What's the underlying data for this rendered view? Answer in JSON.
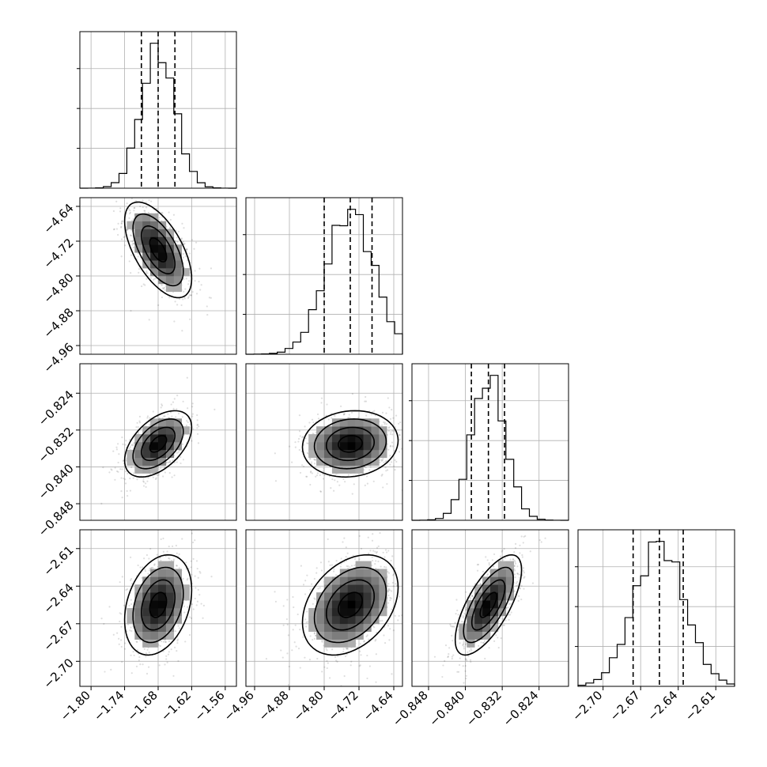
{
  "chart_data": {
    "type": "corner",
    "parameters": [
      {
        "index": 0,
        "median": -1.68,
        "q16": -1.71,
        "q84": -1.65,
        "std": 0.03,
        "range": [
          -1.82,
          -1.54
        ],
        "ticks": [
          -1.8,
          -1.74,
          -1.68,
          -1.62,
          -1.56
        ],
        "tick_labels": [
          "−1.80",
          "−1.74",
          "−1.68",
          "−1.62",
          "−1.56"
        ]
      },
      {
        "index": 1,
        "median": -4.74,
        "q16": -4.8,
        "q84": -4.69,
        "std": 0.055,
        "range": [
          -4.98,
          -4.62
        ],
        "ticks": [
          -4.96,
          -4.88,
          -4.8,
          -4.72,
          -4.64
        ],
        "tick_labels": [
          "−4.96",
          "−4.88",
          "−4.80",
          "−4.72",
          "−4.64"
        ]
      },
      {
        "index": 2,
        "median": -0.835,
        "q16": -0.8387,
        "q84": -0.8315,
        "std": 0.0036,
        "range": [
          -0.8516,
          -0.8176
        ],
        "ticks": [
          -0.848,
          -0.84,
          -0.832,
          -0.824
        ],
        "tick_labels": [
          "−0.848",
          "−0.840",
          "−0.832",
          "−0.824"
        ]
      },
      {
        "index": 3,
        "median": -2.655,
        "q16": -2.676,
        "q84": -2.636,
        "std": 0.02,
        "range": [
          -2.72,
          -2.595
        ],
        "ticks": [
          -2.7,
          -2.67,
          -2.64,
          -2.61
        ],
        "tick_labels": [
          "−2.70",
          "−2.67",
          "−2.64",
          "−2.61"
        ]
      }
    ],
    "correlations": {
      "1_0": -0.6,
      "2_0": 0.5,
      "2_1": 0.1,
      "3_0": 0.3,
      "3_1": 0.35,
      "3_2": 0.7
    },
    "histogram_bins": 20,
    "quantiles": [
      0.16,
      0.5,
      0.84
    ],
    "contour_levels": 4,
    "grid": true,
    "xlabels": [
      "",
      "",
      "",
      ""
    ],
    "ylabels": [
      "",
      "",
      "",
      ""
    ]
  }
}
